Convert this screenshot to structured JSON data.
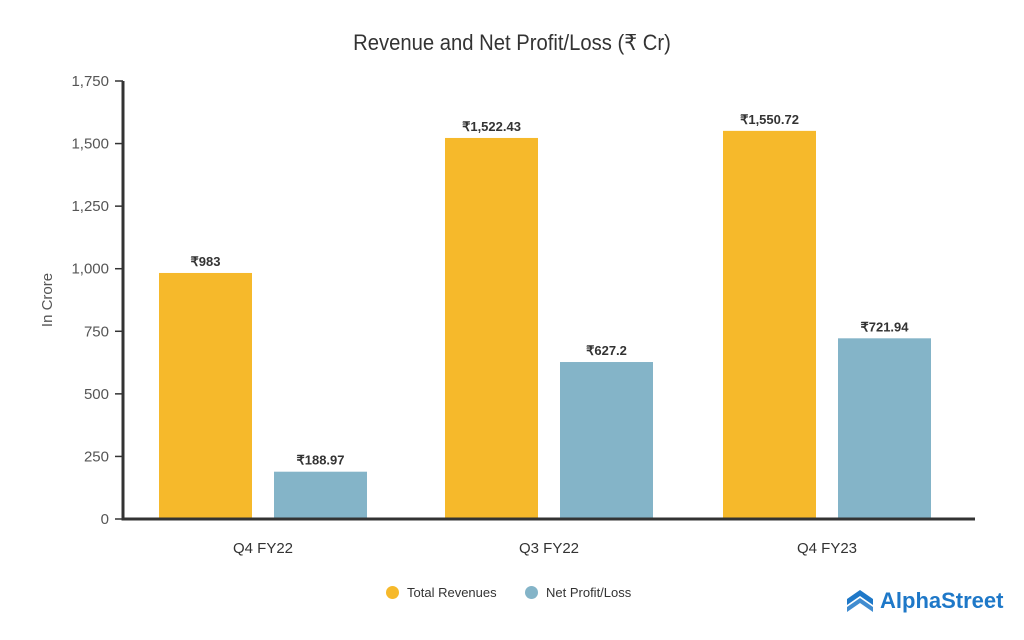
{
  "chart_data": {
    "type": "bar",
    "title": "Revenue and Net Profit/Loss (₹ Cr)",
    "xlabel": "",
    "ylabel": "In Crore",
    "ylim": [
      0,
      1750
    ],
    "yticks": [
      0,
      250,
      500,
      750,
      1000,
      1250,
      1500,
      1750
    ],
    "ytick_labels": [
      "0",
      "250",
      "500",
      "750",
      "1,000",
      "1,250",
      "1,500",
      "1,750"
    ],
    "categories": [
      "Q4 FY22",
      "Q3 FY22",
      "Q4 FY23"
    ],
    "series": [
      {
        "name": "Total Revenues",
        "color": "#F6B92B",
        "values": [
          983,
          1522.43,
          1550.72
        ],
        "labels": [
          "₹983",
          "₹1,522.43",
          "₹1,550.72"
        ]
      },
      {
        "name": "Net Profit/Loss",
        "color": "#84B4C8",
        "values": [
          188.97,
          627.2,
          721.94
        ],
        "labels": [
          "₹188.97",
          "₹627.2",
          "₹721.94"
        ]
      }
    ],
    "grid": false,
    "legend": "bottom-center"
  },
  "brand": {
    "name": "AlphaStreet",
    "color": "#1E78C8"
  }
}
